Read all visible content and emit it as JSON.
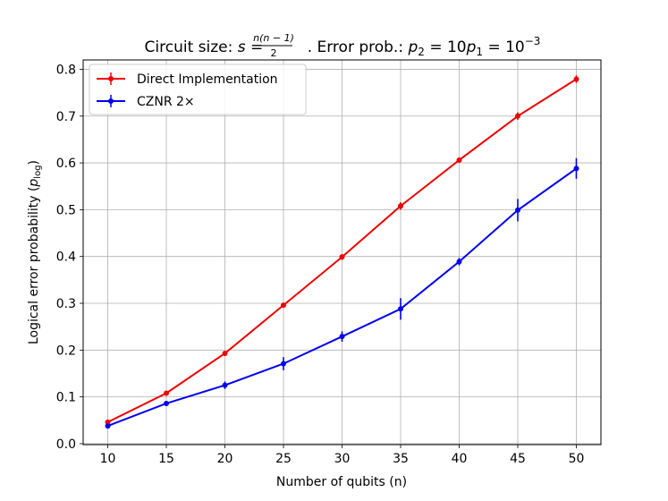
{
  "chart_data": {
    "type": "line",
    "title_parts": {
      "prefix": "Circuit size: ",
      "s_var": "s",
      "eq1": " = ",
      "frac_num": "n(n − 1)",
      "frac_den": "2",
      "middle": ".  Error prob.: ",
      "p2": "p",
      "p2_sub": "2",
      "eq2": " = 10",
      "p1": "p",
      "p1_sub": "1",
      "eq3": " = 10",
      "exp": "−3"
    },
    "xlabel": "Number of qubits (n)",
    "ylabel_prefix": "Logical error probability (",
    "ylabel_var": "p",
    "ylabel_sub": "log",
    "ylabel_suffix": ")",
    "xlim": [
      7.9,
      52.1
    ],
    "ylim": [
      -0.002,
      0.82
    ],
    "xticks": [
      10,
      15,
      20,
      25,
      30,
      35,
      40,
      45,
      50
    ],
    "xtick_labels": [
      "10",
      "15",
      "20",
      "25",
      "30",
      "35",
      "40",
      "45",
      "50"
    ],
    "yticks": [
      0.0,
      0.1,
      0.2,
      0.3,
      0.4,
      0.5,
      0.6,
      0.7,
      0.8
    ],
    "ytick_labels": [
      "0.0",
      "0.1",
      "0.2",
      "0.3",
      "0.4",
      "0.5",
      "0.6",
      "0.7",
      "0.8"
    ],
    "grid": true,
    "legend_position": "upper-left",
    "x": [
      10,
      15,
      20,
      25,
      30,
      35,
      40,
      45,
      50
    ],
    "series": [
      {
        "name": "Direct Implementation",
        "color": "#ee0000",
        "values": [
          0.046,
          0.108,
          0.193,
          0.296,
          0.399,
          0.508,
          0.606,
          0.7,
          0.779
        ],
        "errors": [
          0.003,
          0.003,
          0.004,
          0.005,
          0.006,
          0.008,
          0.004,
          0.008,
          0.008
        ]
      },
      {
        "name": "CZNR 2×",
        "color": "#0000ee",
        "values": [
          0.038,
          0.086,
          0.125,
          0.171,
          0.229,
          0.288,
          0.389,
          0.499,
          0.588
        ],
        "errors": [
          0.004,
          0.004,
          0.008,
          0.014,
          0.011,
          0.023,
          0.008,
          0.024,
          0.022
        ]
      }
    ]
  }
}
